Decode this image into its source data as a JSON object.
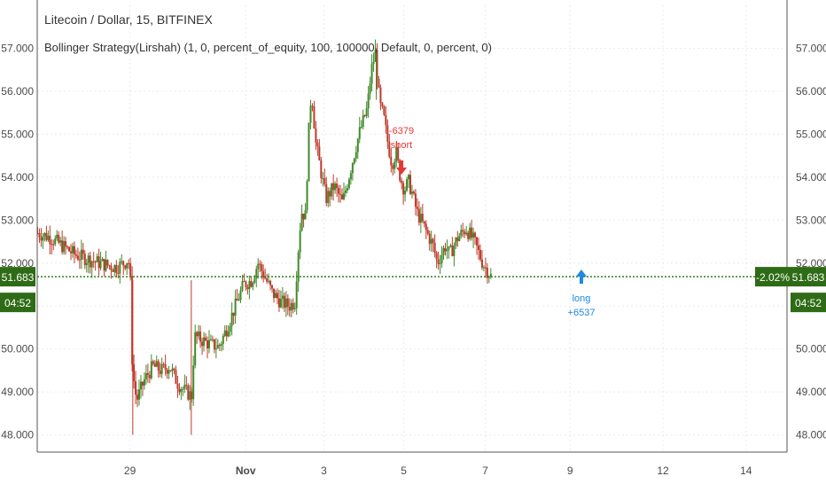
{
  "header": {
    "title": "Litecoin / Dollar, 15, BITFINEX",
    "strategy": "Bollinger Strategy(Lirshah) (1, 0, percent_of_equity, 100, 100000, Default, 0, percent, 0)"
  },
  "colors": {
    "up": "#3f8a2a",
    "down": "#c0392b",
    "price_line": "#2e7d1e",
    "price_badge": "#2e6b16",
    "short_marker": "#e53935",
    "long_marker": "#1e88e5",
    "grid": "#e8ecef",
    "axis_text": "#4a4a4a"
  },
  "price_axis": {
    "last_price_label": "51.683",
    "countdown_label": "04:52",
    "change_label": "-2.02%"
  },
  "chart_data": {
    "type": "candlestick",
    "title": "Litecoin / Dollar, 15, BITFINEX",
    "ylim": [
      47.6,
      58.0
    ],
    "y_ticks": [
      "48.000",
      "49.000",
      "50.000",
      "51.000",
      "52.000",
      "53.000",
      "54.000",
      "55.000",
      "56.000",
      "57.000"
    ],
    "x_ticks": [
      "29",
      "Nov",
      "3",
      "5",
      "7",
      "9",
      "12",
      "14"
    ],
    "grid": true,
    "last_price": 51.683,
    "path_points": [
      [
        0,
        52.7
      ],
      [
        0.03,
        52.6
      ],
      [
        0.06,
        52.4
      ],
      [
        0.09,
        52.2
      ],
      [
        0.12,
        52.1
      ],
      [
        0.15,
        52.0
      ],
      [
        0.17,
        51.95
      ],
      [
        0.19,
        51.9
      ],
      [
        0.2,
        51.95
      ],
      [
        0.21,
        52.0
      ],
      [
        0.22,
        52.1
      ],
      [
        0.225,
        51.6
      ],
      [
        0.23,
        49.5
      ],
      [
        0.24,
        48.8
      ],
      [
        0.26,
        49.3
      ],
      [
        0.28,
        49.6
      ],
      [
        0.3,
        49.5
      ],
      [
        0.32,
        49.6
      ],
      [
        0.34,
        49.2
      ],
      [
        0.36,
        49.0
      ],
      [
        0.375,
        48.9
      ],
      [
        0.38,
        50.3
      ],
      [
        0.4,
        50.2
      ],
      [
        0.42,
        50.1
      ],
      [
        0.44,
        50.05
      ],
      [
        0.46,
        50.5
      ],
      [
        0.48,
        51.0
      ],
      [
        0.5,
        51.5
      ],
      [
        0.52,
        51.6
      ],
      [
        0.535,
        52.0
      ],
      [
        0.55,
        51.7
      ],
      [
        0.57,
        51.3
      ],
      [
        0.59,
        51.1
      ],
      [
        0.61,
        51.0
      ],
      [
        0.625,
        51.1
      ],
      [
        0.63,
        52.0
      ],
      [
        0.64,
        53.2
      ],
      [
        0.65,
        53.1
      ],
      [
        0.66,
        55.5
      ],
      [
        0.665,
        56.0
      ],
      [
        0.675,
        54.8
      ],
      [
        0.69,
        54.0
      ],
      [
        0.7,
        53.5
      ],
      [
        0.72,
        53.8
      ],
      [
        0.74,
        53.4
      ],
      [
        0.76,
        54.2
      ],
      [
        0.78,
        55.0
      ],
      [
        0.8,
        55.6
      ],
      [
        0.81,
        56.5
      ],
      [
        0.82,
        56.9
      ],
      [
        0.83,
        55.7
      ],
      [
        0.84,
        55.4
      ],
      [
        0.85,
        54.8
      ],
      [
        0.86,
        54.3
      ],
      [
        0.87,
        54.6
      ],
      [
        0.88,
        54.0
      ],
      [
        0.89,
        53.7
      ],
      [
        0.9,
        53.9
      ],
      [
        0.91,
        53.6
      ],
      [
        0.92,
        53.2
      ],
      [
        0.94,
        52.8
      ],
      [
        0.96,
        52.4
      ],
      [
        0.97,
        52.0
      ],
      [
        0.98,
        52.2
      ],
      [
        0.99,
        52.4
      ],
      [
        1.0,
        52.2
      ],
      [
        1.02,
        52.6
      ],
      [
        1.04,
        52.8
      ],
      [
        1.06,
        52.5
      ],
      [
        1.08,
        52.0
      ],
      [
        1.1,
        51.7
      ]
    ],
    "annotations": [
      {
        "text": "-6379",
        "kind": "short"
      },
      {
        "text": "short",
        "kind": "short"
      },
      {
        "text": "long",
        "kind": "long"
      },
      {
        "text": "+6537",
        "kind": "long"
      }
    ]
  }
}
